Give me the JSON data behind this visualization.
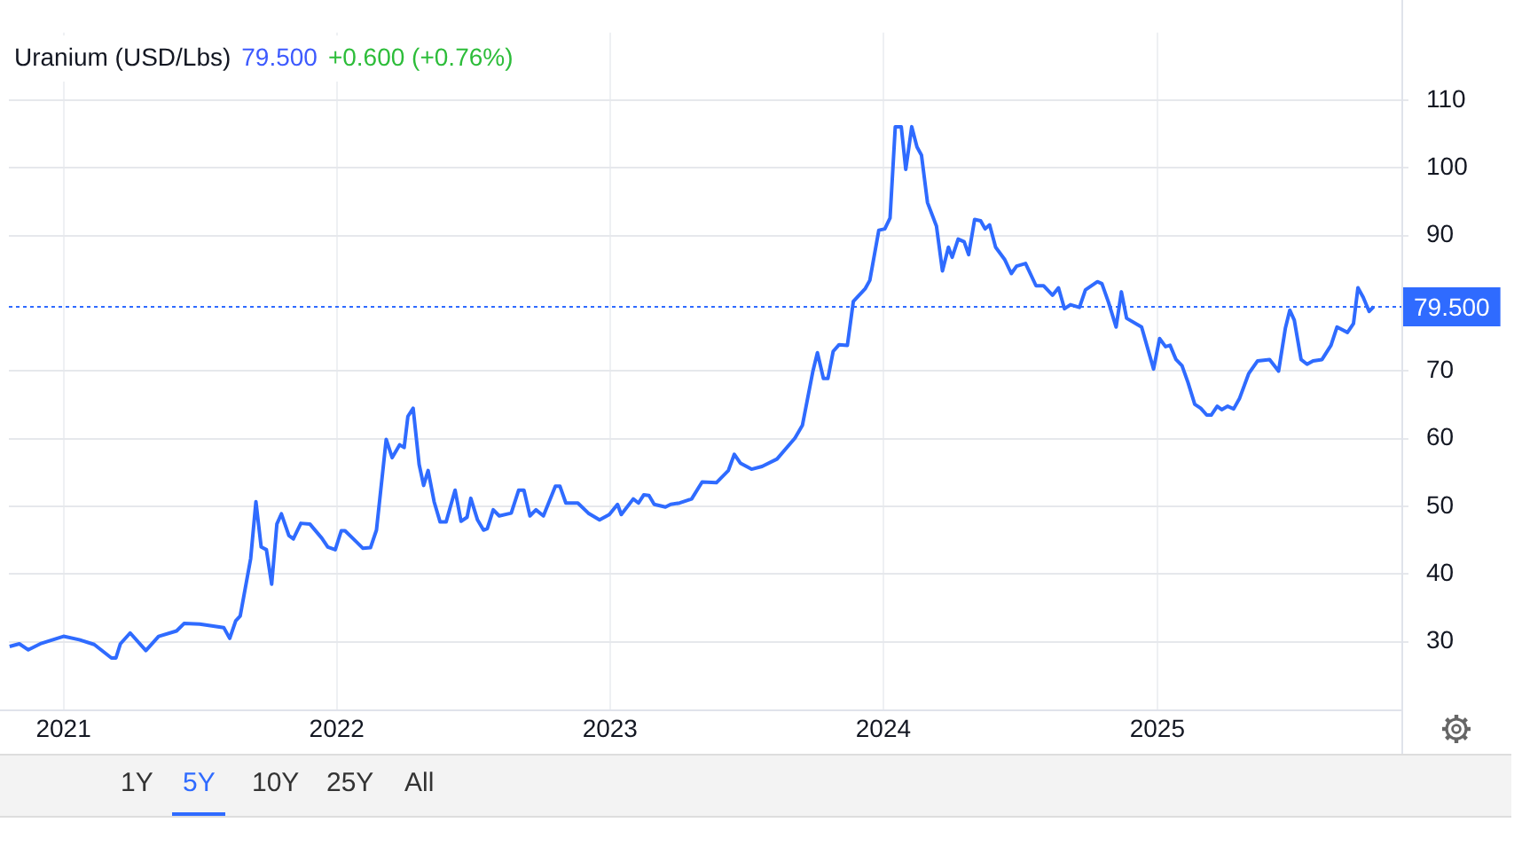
{
  "chart_data": {
    "type": "line",
    "title": "Uranium (USD/Lbs)",
    "annotations": [
      "79.500",
      "+0.600 (+0.76%)",
      "1Y",
      "5Y",
      "10Y",
      "25Y",
      "All"
    ],
    "x": [
      "2020-10-21",
      "2020-11-03",
      "2020-11-15",
      "2020-12-01",
      "2021-01-01",
      "2021-01-22",
      "2021-02-11",
      "2021-03-06",
      "2021-03-12",
      "2021-03-18",
      "2021-03-31",
      "2021-04-21",
      "2021-05-08",
      "2021-06-01",
      "2021-06-11",
      "2021-07-02",
      "2021-08-03",
      "2021-08-11",
      "2021-08-19",
      "2021-08-25",
      "2021-09-08",
      "2021-09-15",
      "2021-09-22",
      "2021-09-29",
      "2021-10-06",
      "2021-10-13",
      "2021-10-19",
      "2021-10-29",
      "2021-11-04",
      "2021-11-14",
      "2021-11-26",
      "2021-12-12",
      "2021-12-20",
      "2021-12-30",
      "2022-01-07",
      "2022-01-12",
      "2022-01-24",
      "2022-02-05",
      "2022-02-15",
      "2022-02-23",
      "2022-03-08",
      "2022-03-16",
      "2022-03-26",
      "2022-04-01",
      "2022-04-06",
      "2022-04-13",
      "2022-04-21",
      "2022-04-27",
      "2022-05-03",
      "2022-05-11",
      "2022-05-19",
      "2022-05-27",
      "2022-06-08",
      "2022-06-16",
      "2022-06-24",
      "2022-06-29",
      "2022-07-08",
      "2022-07-16",
      "2022-07-21",
      "2022-07-29",
      "2022-08-06",
      "2022-08-22",
      "2022-09-01",
      "2022-09-08",
      "2022-09-16",
      "2022-09-24",
      "2022-10-04",
      "2022-10-20",
      "2022-10-26",
      "2022-11-03",
      "2022-11-19",
      "2022-12-03",
      "2022-12-18",
      "2022-12-31",
      "2023-01-11",
      "2023-01-16",
      "2023-02-01",
      "2023-02-08",
      "2023-02-15",
      "2023-02-22",
      "2023-03-01",
      "2023-03-16",
      "2023-03-23",
      "2023-04-04",
      "2023-04-20",
      "2023-05-04",
      "2023-05-23",
      "2023-06-08",
      "2023-06-16",
      "2023-06-24",
      "2023-07-09",
      "2023-07-23",
      "2023-08-12",
      "2023-09-05",
      "2023-09-15",
      "2023-09-29",
      "2023-10-05",
      "2023-10-13",
      "2023-10-19",
      "2023-10-26",
      "2023-11-03",
      "2023-11-14",
      "2023-11-22",
      "2023-12-08",
      "2023-12-14",
      "2023-12-26",
      "2024-01-03",
      "2024-01-10",
      "2024-01-17",
      "2024-01-25",
      "2024-01-31",
      "2024-02-08",
      "2024-02-15",
      "2024-02-21",
      "2024-02-29",
      "2024-03-12",
      "2024-03-20",
      "2024-03-28",
      "2024-04-02",
      "2024-04-10",
      "2024-04-18",
      "2024-04-24",
      "2024-05-02",
      "2024-05-10",
      "2024-05-16",
      "2024-05-22",
      "2024-05-30",
      "2024-06-11",
      "2024-06-20",
      "2024-06-27",
      "2024-07-09",
      "2024-07-23",
      "2024-08-02",
      "2024-08-14",
      "2024-08-22",
      "2024-08-30",
      "2024-09-07",
      "2024-09-19",
      "2024-09-27",
      "2024-10-13",
      "2024-10-19",
      "2024-10-28",
      "2024-11-07",
      "2024-11-14",
      "2024-11-21",
      "2024-12-11",
      "2024-12-27",
      "2025-01-04",
      "2025-01-12",
      "2025-01-18",
      "2025-01-26",
      "2025-02-03",
      "2025-02-11",
      "2025-02-20",
      "2025-02-28",
      "2025-03-08",
      "2025-03-14",
      "2025-03-22",
      "2025-03-28",
      "2025-04-05",
      "2025-04-13",
      "2025-04-21",
      "2025-05-03",
      "2025-05-15",
      "2025-05-31",
      "2025-06-12",
      "2025-06-21",
      "2025-06-27",
      "2025-07-03",
      "2025-07-12",
      "2025-07-20",
      "2025-07-28",
      "2025-08-09",
      "2025-08-21",
      "2025-08-29",
      "2025-09-12",
      "2025-09-20",
      "2025-09-26",
      "2025-10-03",
      "2025-10-11",
      "2025-10-17"
    ],
    "series": [
      {
        "color": "#2f6bff",
        "values": [
          29.3,
          29.7,
          28.8,
          29.7,
          30.8,
          30.3,
          29.6,
          27.6,
          27.6,
          29.7,
          31.3,
          28.7,
          30.8,
          31.6,
          32.7,
          32.6,
          32.1,
          30.5,
          33.1,
          33.8,
          42.3,
          50.7,
          44.0,
          43.6,
          38.5,
          47.4,
          48.9,
          45.7,
          45.2,
          47.5,
          47.4,
          45.3,
          44.0,
          43.6,
          46.4,
          46.4,
          45.1,
          43.8,
          43.9,
          46.5,
          59.9,
          57.2,
          59.1,
          58.7,
          63.3,
          64.5,
          56.2,
          53.1,
          55.3,
          50.7,
          47.7,
          47.7,
          52.4,
          47.8,
          48.4,
          51.2,
          48.0,
          46.5,
          46.7,
          49.5,
          48.6,
          49.0,
          52.4,
          52.4,
          48.6,
          49.5,
          48.6,
          53.0,
          53.0,
          50.5,
          50.5,
          49.0,
          48.0,
          48.8,
          50.3,
          48.8,
          51.1,
          50.5,
          51.7,
          51.6,
          50.3,
          49.9,
          50.3,
          50.5,
          51.1,
          53.6,
          53.5,
          55.3,
          57.7,
          56.4,
          55.5,
          55.9,
          57.0,
          60.1,
          62.0,
          70.0,
          72.7,
          68.9,
          68.9,
          72.9,
          73.9,
          73.8,
          80.3,
          82.2,
          83.4,
          90.8,
          91.0,
          92.6,
          106.1,
          106.1,
          99.8,
          106.1,
          103.1,
          101.9,
          94.9,
          91.4,
          84.8,
          88.3,
          86.8,
          89.5,
          89.1,
          87.2,
          92.4,
          92.2,
          91.0,
          91.6,
          88.3,
          86.5,
          84.4,
          85.5,
          85.9,
          82.6,
          82.6,
          81.2,
          82.3,
          79.2,
          79.8,
          79.4,
          82.0,
          83.2,
          82.9,
          80.1,
          76.5,
          81.7,
          77.8,
          76.5,
          70.3,
          74.8,
          73.6,
          73.8,
          71.7,
          70.8,
          68.3,
          65.1,
          64.5,
          63.5,
          63.5,
          64.8,
          64.3,
          64.8,
          64.4,
          66.0,
          69.6,
          71.5,
          71.7,
          70.0,
          76.3,
          79.0,
          77.5,
          71.7,
          71.0,
          71.5,
          71.7,
          73.8,
          76.5,
          75.7,
          77.0,
          82.3,
          80.9,
          78.8,
          79.5
        ]
      }
    ],
    "xlim": [
      "2020-10-20",
      "2025-11-23"
    ],
    "xticks": [
      {
        "value": "2021-01-01",
        "label": "2021"
      },
      {
        "value": "2022-01-01",
        "label": "2022"
      },
      {
        "value": "2023-01-01",
        "label": "2023"
      },
      {
        "value": "2024-01-01",
        "label": "2024"
      },
      {
        "value": "2025-01-01",
        "label": "2025"
      }
    ],
    "ylim": [
      20,
      120
    ],
    "yticks": [
      30,
      40,
      50,
      60,
      70,
      90,
      100,
      110
    ],
    "ref_lines": [
      {
        "axis": "y",
        "value": 79.5,
        "label": "79.500",
        "color": "#2f6bff",
        "line_style": "dotted"
      }
    ],
    "grid": true,
    "legend": false,
    "marker": "none",
    "line_style": "solid"
  }
}
